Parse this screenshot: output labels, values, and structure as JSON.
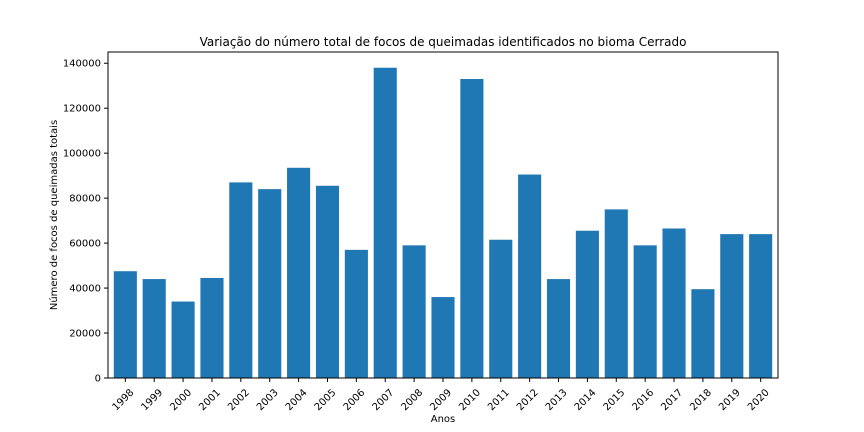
{
  "chart_data": {
    "type": "bar",
    "title": "Variação do número total de focos de queimadas identificados no bioma Cerrado",
    "xlabel": "Anos",
    "ylabel": "Número de focos de queimadas totais",
    "categories": [
      "1998",
      "1999",
      "2000",
      "2001",
      "2002",
      "2003",
      "2004",
      "2005",
      "2006",
      "2007",
      "2008",
      "2009",
      "2010",
      "2011",
      "2012",
      "2013",
      "2014",
      "2015",
      "2016",
      "2017",
      "2018",
      "2019",
      "2020"
    ],
    "values": [
      47500,
      44000,
      34000,
      44500,
      87000,
      84000,
      93500,
      85500,
      57000,
      138000,
      59000,
      36000,
      133000,
      61500,
      90500,
      44000,
      65500,
      75000,
      59000,
      66500,
      39500,
      64000,
      64000
    ],
    "ylim": [
      0,
      145000
    ],
    "yticks": [
      0,
      20000,
      40000,
      60000,
      80000,
      100000,
      120000,
      140000
    ],
    "ytick_labels": [
      "0",
      "20000",
      "40000",
      "60000",
      "80000",
      "100000",
      "120000",
      "140000"
    ],
    "bar_color": "#1f77b4",
    "grid": false,
    "legend": "none"
  }
}
